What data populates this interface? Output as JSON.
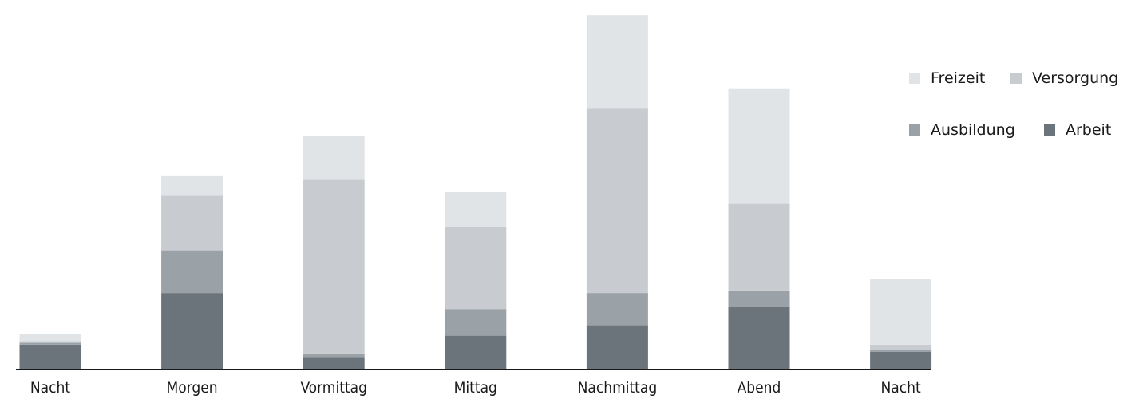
{
  "chart_data": {
    "type": "bar",
    "stacked": true,
    "categories": [
      "Nacht",
      "Morgen",
      "Vormittag",
      "Mittag",
      "Nachmittag",
      "Abend",
      "Nacht"
    ],
    "series": [
      {
        "name": "Arbeit",
        "color": "#6c747b",
        "values": [
          7.0,
          21.5,
          3.5,
          9.5,
          12.5,
          17.5,
          5.0
        ]
      },
      {
        "name": "Ausbildung",
        "color": "#9aa1a7",
        "values": [
          0.5,
          12.0,
          1.0,
          7.5,
          9.0,
          4.5,
          0.5
        ]
      },
      {
        "name": "Versorgung",
        "color": "#c8ccd0",
        "values": [
          0.5,
          15.5,
          49.0,
          23.0,
          52.0,
          24.5,
          1.5
        ]
      },
      {
        "name": "Freizeit",
        "color": "#e1e4e7",
        "values": [
          2.0,
          5.5,
          12.0,
          10.0,
          26.0,
          32.5,
          18.5
        ]
      }
    ],
    "legend": {
      "position": "top-right",
      "order": [
        "Freizeit",
        "Versorgung",
        "Ausbildung",
        "Arbeit"
      ]
    },
    "axis_color": "#1a1a1a",
    "ylim": [
      0,
      100
    ],
    "grid": false
  }
}
